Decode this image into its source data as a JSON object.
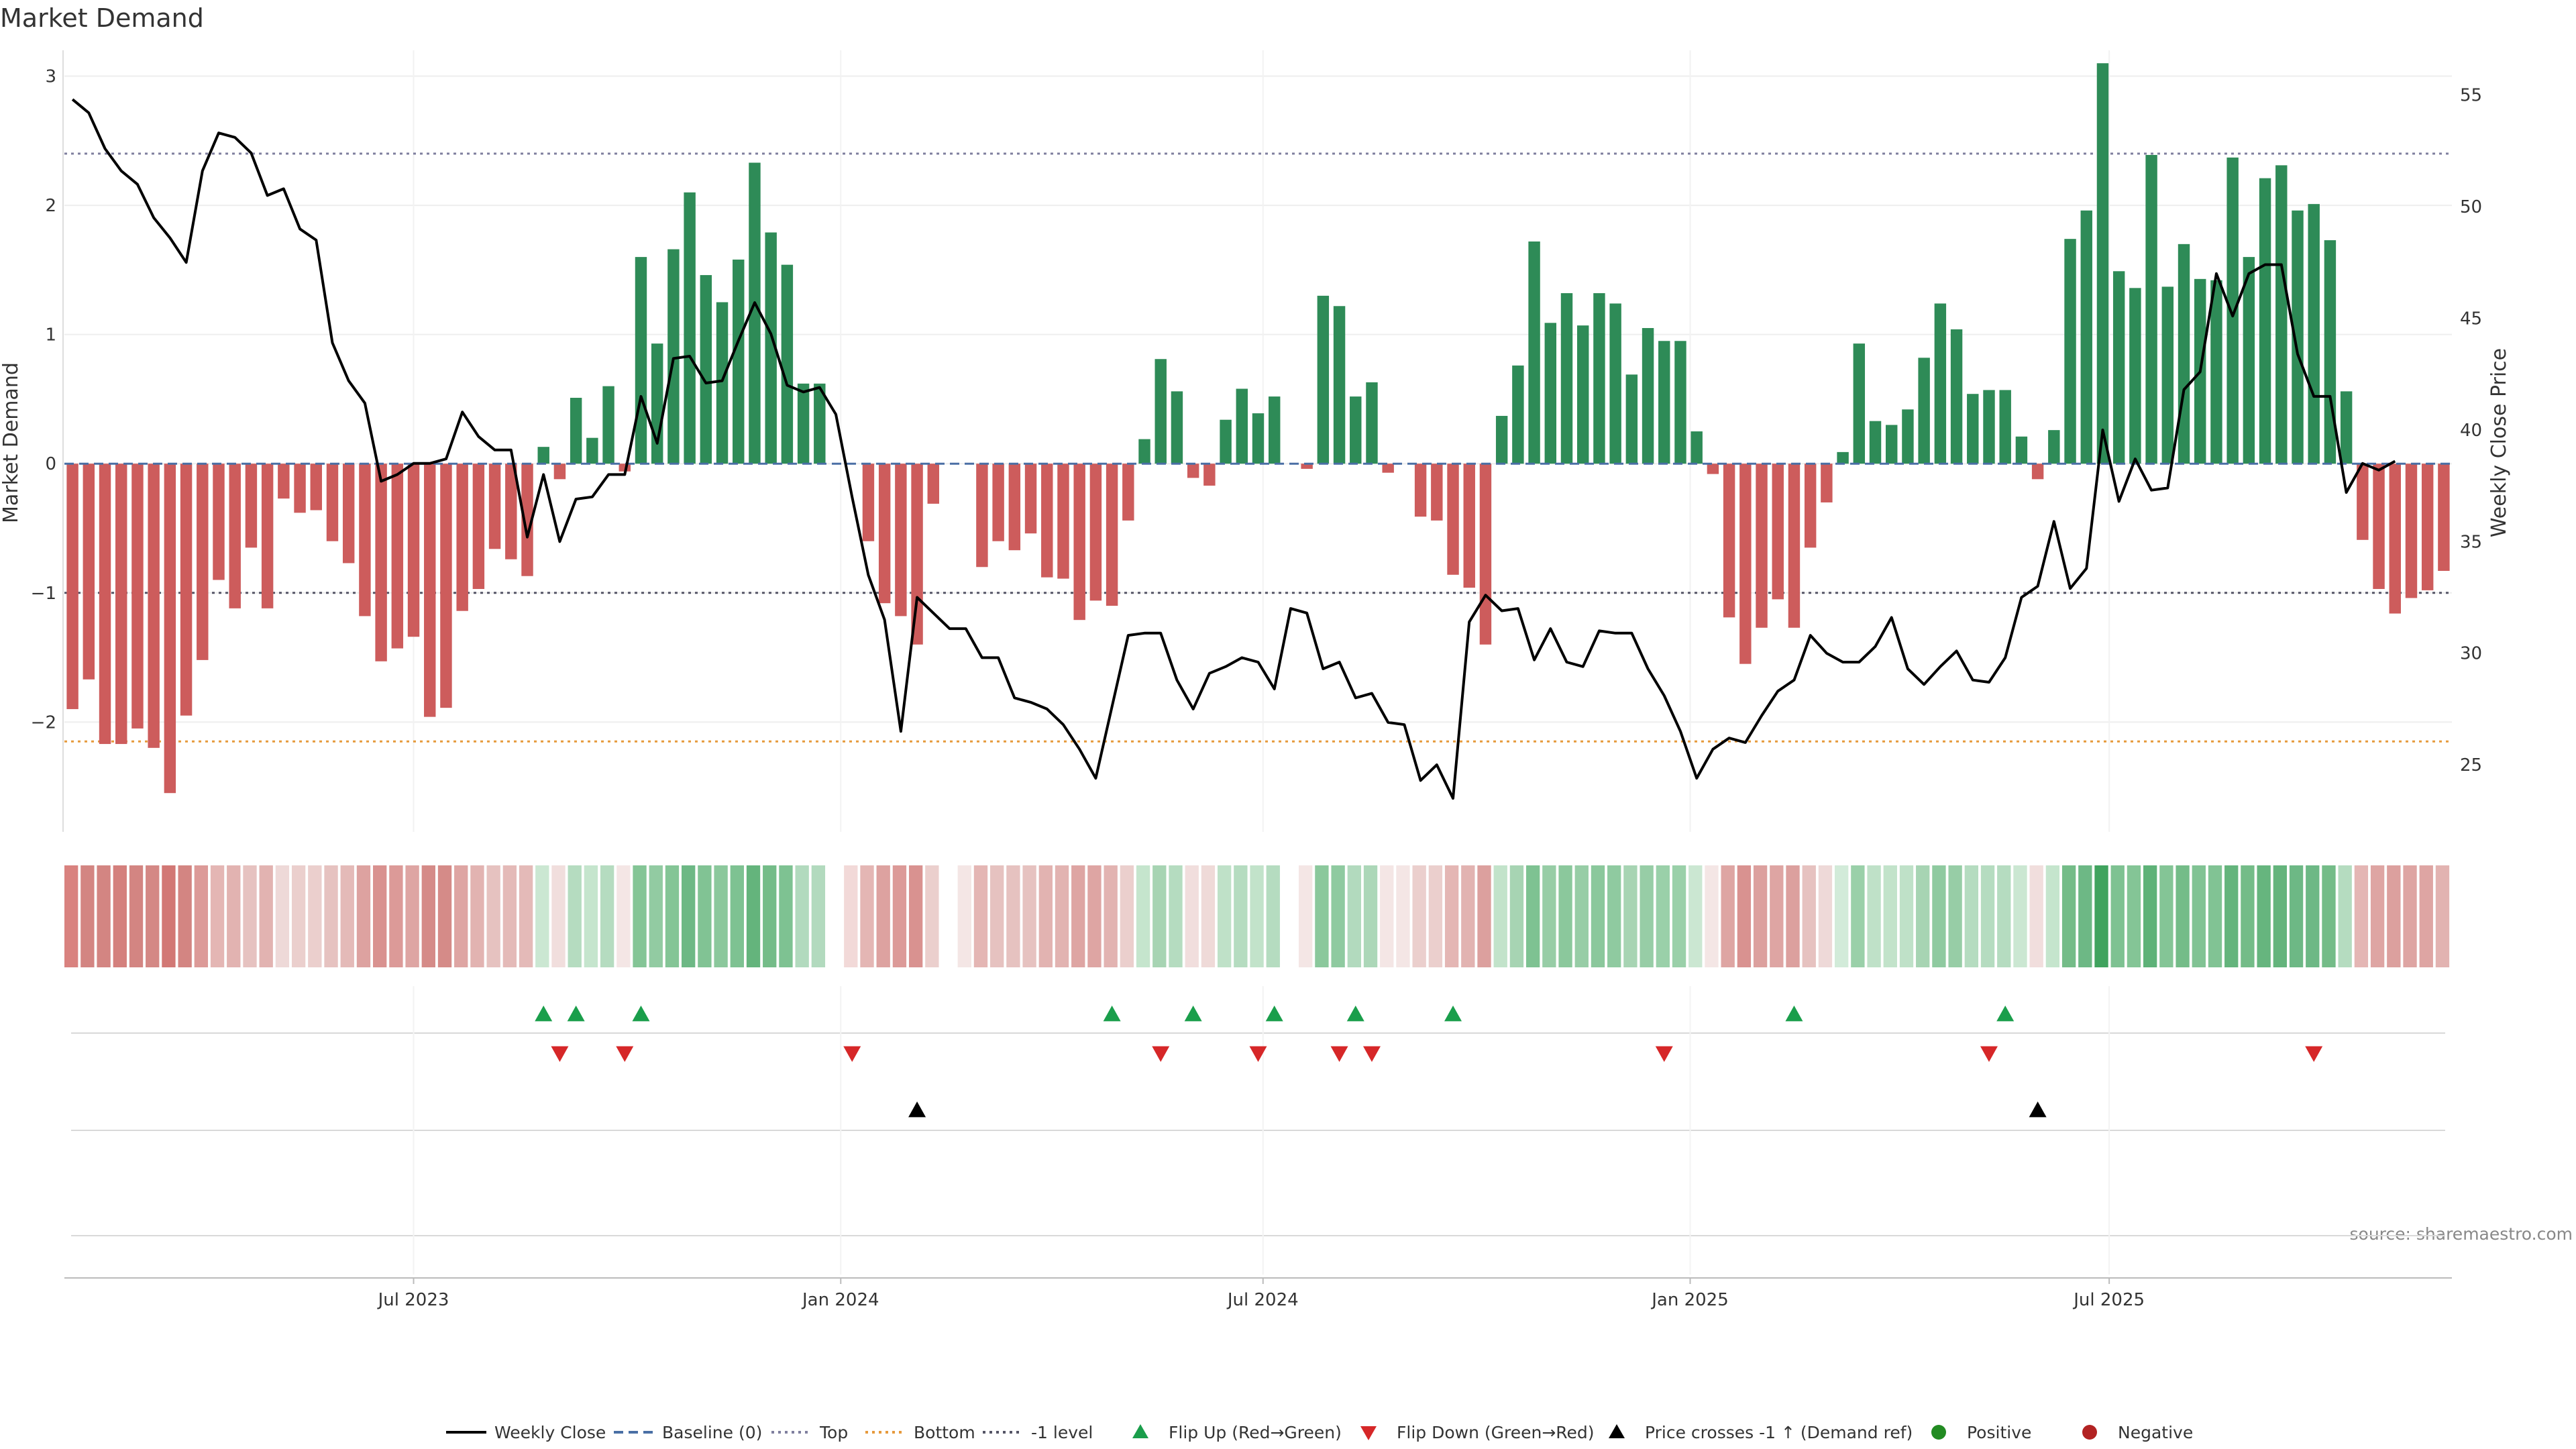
{
  "chart_data": {
    "type": "bar",
    "title": "Market Demand",
    "ylabel_left": "Market Demand",
    "ylabel_right": "Weekly Close Price",
    "source": "source: sharemaestro.com",
    "ylim_left": [
      -2.85,
      3.2
    ],
    "ylim_right": [
      22,
      57
    ],
    "left_ticks": [
      {
        "v": 3,
        "label": "3"
      },
      {
        "v": 2,
        "label": "2"
      },
      {
        "v": 1,
        "label": "1"
      },
      {
        "v": 0,
        "label": "0"
      },
      {
        "v": -1,
        "label": "−1"
      },
      {
        "v": -2,
        "label": "−2"
      }
    ],
    "right_ticks": [
      {
        "v": 55,
        "label": "55"
      },
      {
        "v": 50,
        "label": "50"
      },
      {
        "v": 45,
        "label": "45"
      },
      {
        "v": 40,
        "label": "40"
      },
      {
        "v": 35,
        "label": "35"
      },
      {
        "v": 30,
        "label": "30"
      },
      {
        "v": 25,
        "label": "25"
      }
    ],
    "x_ticks": [
      {
        "i": 21,
        "label": "Jul 2023"
      },
      {
        "i": 47.3,
        "label": "Jan 2024"
      },
      {
        "i": 73.3,
        "label": "Jul 2024"
      },
      {
        "i": 99.6,
        "label": "Jan 2025"
      },
      {
        "i": 125.4,
        "label": "Jul 2025"
      }
    ],
    "reference_lines": {
      "baseline": 0,
      "top": 2.4,
      "bottom": -2.15,
      "minus_one": -1
    },
    "colors": {
      "positive_bar": "#2e8b57",
      "negative_bar": "#cd5c5c",
      "price_line": "#000000",
      "baseline": "#4a6fa5",
      "top_line": "#7f7f9f",
      "bottom_line": "#e69a3c",
      "minus_one_line": "#555566",
      "flip_up": "#1a9e4b",
      "flip_down": "#d62728",
      "price_cross": "#000000",
      "positive_dot": "#228b22",
      "negative_dot": "#b22222"
    },
    "series": [
      {
        "name": "Market Demand",
        "values": [
          -1.9,
          -1.67,
          -2.17,
          -2.17,
          -2.05,
          -2.2,
          -2.55,
          -1.95,
          -1.52,
          -0.9,
          -1.12,
          -0.65,
          -1.12,
          -0.27,
          -0.38,
          -0.36,
          -0.6,
          -0.77,
          -1.18,
          -1.53,
          -1.43,
          -1.34,
          -1.96,
          -1.89,
          -1.14,
          -0.97,
          -0.66,
          -0.74,
          -0.87,
          0.13,
          -0.12,
          0.51,
          0.2,
          0.6,
          -0.06,
          1.6,
          0.93,
          1.66,
          2.1,
          1.46,
          1.25,
          1.58,
          2.33,
          1.79,
          1.54,
          0.62,
          0.62,
          0.0,
          0.0,
          -0.6,
          -1.08,
          -1.18,
          -1.4,
          -0.31,
          0.0,
          0.0,
          -0.8,
          -0.6,
          -0.67,
          -0.54,
          -0.88,
          -0.89,
          -1.21,
          -1.06,
          -1.1,
          -0.44,
          0.19,
          0.81,
          0.56,
          -0.11,
          -0.17,
          0.34,
          0.58,
          0.39,
          0.52,
          0.0,
          -0.04,
          1.3,
          1.22,
          0.52,
          0.63,
          -0.07,
          0.0,
          -0.41,
          -0.44,
          -0.86,
          -0.96,
          -1.4,
          0.37,
          0.76,
          1.72,
          1.09,
          1.32,
          1.07,
          1.32,
          1.24,
          0.69,
          1.05,
          0.95,
          0.95,
          0.25,
          -0.08,
          -1.19,
          -1.55,
          -1.27,
          -1.05,
          -1.27,
          -0.65,
          -0.3,
          0.09,
          0.93,
          0.33,
          0.3,
          0.42,
          0.82,
          1.24,
          1.04,
          0.54,
          0.57,
          0.57,
          0.21,
          -0.12,
          0.26,
          1.74,
          1.96,
          3.1,
          1.49,
          1.36,
          2.39,
          1.37,
          1.7,
          1.43,
          1.42,
          2.37,
          1.6,
          2.21,
          2.31,
          1.96,
          2.01,
          1.73,
          0.56,
          -0.59,
          -0.97,
          -1.16,
          -1.04,
          -0.98,
          -0.83
        ]
      },
      {
        "name": "Weekly Close",
        "values": [
          54.8,
          54.2,
          52.6,
          51.6,
          51.0,
          49.5,
          48.6,
          47.5,
          51.6,
          53.3,
          53.1,
          52.4,
          50.5,
          50.8,
          49.0,
          48.5,
          43.9,
          42.2,
          41.2,
          37.7,
          38.0,
          38.5,
          38.5,
          38.7,
          40.8,
          39.7,
          39.1,
          39.1,
          35.2,
          38.0,
          35.0,
          36.9,
          37.0,
          38.0,
          38.0,
          41.5,
          39.4,
          43.2,
          43.3,
          42.1,
          42.2,
          44.0,
          45.7,
          44.3,
          42.0,
          41.7,
          41.9,
          40.7,
          37.0,
          33.5,
          31.5,
          26.5,
          32.5,
          31.8,
          31.1,
          31.1,
          29.8,
          29.8,
          28.0,
          27.8,
          27.5,
          26.8,
          25.7,
          24.4,
          27.6,
          30.8,
          30.9,
          30.9,
          28.8,
          27.5,
          29.1,
          29.4,
          29.8,
          29.6,
          28.4,
          32.0,
          31.8,
          29.3,
          29.6,
          28.0,
          28.2,
          26.9,
          26.8,
          24.3,
          25.0,
          23.5,
          31.4,
          32.6,
          31.9,
          32.0,
          29.7,
          31.1,
          29.6,
          29.4,
          31.0,
          30.9,
          30.9,
          29.3,
          28.1,
          26.5,
          24.4,
          25.7,
          26.2,
          26.0,
          27.2,
          28.3,
          28.8,
          30.8,
          30.0,
          29.6,
          29.6,
          30.3,
          31.6,
          29.3,
          28.6,
          29.4,
          30.1,
          28.8,
          28.7,
          29.8,
          32.5,
          33.0,
          35.9,
          32.9,
          33.8,
          40.0,
          36.8,
          38.7,
          37.3,
          37.4,
          41.8,
          42.6,
          47.0,
          45.1,
          47.0,
          47.4,
          47.4,
          43.4,
          41.5,
          41.5,
          37.2,
          38.5,
          38.2,
          38.6
        ]
      }
    ],
    "strip_shades": [
      "#d9827f",
      "#d38582",
      "#d38582",
      "#d4807d",
      "#d38582",
      "#d48885",
      "#d27875",
      "#d38582",
      "#dc9a98",
      "#e4b6b4",
      "#e2b3b1",
      "#e6c2c0",
      "#e2b3b1",
      "#eed9d8",
      "#ebcfcd",
      "#ebcfcd",
      "#e6c2c0",
      "#e4bab8",
      "#dda2a0",
      "#d99290",
      "#dc9a98",
      "#dea5a3",
      "#d58b88",
      "#d58b88",
      "#dea5a3",
      "#e2b3b1",
      "#e6c2c0",
      "#e4bab8",
      "#e4bab8",
      "#cbe7d2",
      "#f1dedd",
      "#b5dcc0",
      "#c5e5cd",
      "#b5dcc0",
      "#f4e6e5",
      "#84c596",
      "#92cba2",
      "#84c596",
      "#6db885",
      "#81c394",
      "#8bc89c",
      "#7ec292",
      "#64b47c",
      "#74bc88",
      "#7ec292",
      "#b2dabe",
      "#b2dabe",
      "#ffffff",
      "#f2d9d8",
      "#e4b6b4",
      "#dda2a0",
      "#dc9a98",
      "#d99290",
      "#ebcfcd",
      "#ffffff",
      "#f4e6e5",
      "#e4b6b4",
      "#e6c2c0",
      "#e6c2c0",
      "#e6c2c0",
      "#e2b3b1",
      "#e2b3b1",
      "#dea5a3",
      "#dea5a3",
      "#e2b3b1",
      "#ebcfcd",
      "#c5e5cd",
      "#a7d4b3",
      "#b5dcc0",
      "#f1dedd",
      "#efdad8",
      "#bfe1c8",
      "#b5dcc0",
      "#c2e3ca",
      "#b5dcc0",
      "#ffffff",
      "#f4e6e5",
      "#8bc89c",
      "#8fcaa0",
      "#b2dabe",
      "#acd7b8",
      "#f4e6e5",
      "#f4e6e5",
      "#ebcfcd",
      "#ebcfcd",
      "#e4b6b4",
      "#e2b3b1",
      "#dca09e",
      "#c2e3ca",
      "#a7d4b3",
      "#7ec292",
      "#97cda6",
      "#8bc89c",
      "#97cda6",
      "#8bc89c",
      "#8fcaa0",
      "#a7d4b3",
      "#97cda6",
      "#9ad0a9",
      "#9ad0a9",
      "#cbe7d2",
      "#f4e6e5",
      "#dea5a3",
      "#d99290",
      "#dca09e",
      "#dea5a3",
      "#dca09e",
      "#e6c2c0",
      "#eed9d8",
      "#d2ebd9",
      "#9ad0a9",
      "#bfe1c8",
      "#c2e3ca",
      "#bfe1c8",
      "#a7d4b3",
      "#8fcaa0",
      "#97cda6",
      "#b5dcc0",
      "#b5dcc0",
      "#b5dcc0",
      "#cbe7d2",
      "#f1dedd",
      "#c5e5cd",
      "#74bc88",
      "#6db885",
      "#40a35e",
      "#7ec292",
      "#84c596",
      "#5eb278",
      "#84c596",
      "#74bc88",
      "#81c394",
      "#81c394",
      "#64b47c",
      "#74bc88",
      "#66b57e",
      "#64b47c",
      "#6db885",
      "#6db885",
      "#74bc88",
      "#b5dcc0",
      "#e4b6b4",
      "#dea5a3",
      "#dca09e",
      "#dea5a3",
      "#dea5a3",
      "#e2b3b1"
    ],
    "flip_up_idx": [
      29,
      31,
      35,
      64,
      69,
      74,
      79,
      85,
      106,
      119
    ],
    "flip_down_idx": [
      30,
      34,
      48,
      67,
      73,
      78,
      80,
      98,
      118,
      138
    ],
    "price_cross_idx": [
      52,
      121
    ],
    "legend": [
      {
        "kind": "solid",
        "label": "Weekly Close"
      },
      {
        "kind": "dashed",
        "label": "Baseline (0)"
      },
      {
        "kind": "dotted-top",
        "label": "Top"
      },
      {
        "kind": "dotted-bottom",
        "label": "Bottom"
      },
      {
        "kind": "dotted-minus",
        "label": "-1 level"
      },
      {
        "kind": "tri-up",
        "label": "Flip Up (Red→Green)"
      },
      {
        "kind": "tri-down",
        "label": "Flip Down (Green→Red)"
      },
      {
        "kind": "tri-black",
        "label": "Price crosses -1 ↑ (Demand ref)"
      },
      {
        "kind": "dot-pos",
        "label": "Positive"
      },
      {
        "kind": "dot-neg",
        "label": "Negative"
      }
    ]
  }
}
